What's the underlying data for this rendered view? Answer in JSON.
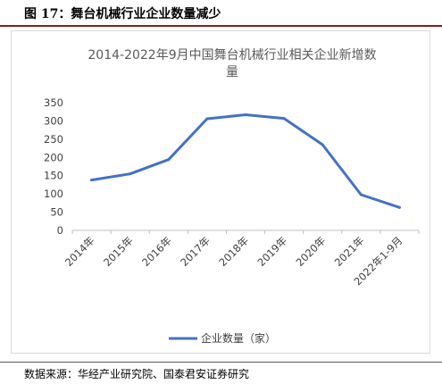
{
  "figure": {
    "title": "图 17：舞台机械行业企业数量减少",
    "source": "数据来源：华经产业研究院、国泰君安证券研究"
  },
  "colors": {
    "line": "#4472c4",
    "rule": "#8b1c1c",
    "axis": "#bfbfbf"
  },
  "chart_data": {
    "type": "line",
    "title_lines": [
      "2014-2022年9月中国舞台机械行业相关企业新增数",
      "量"
    ],
    "categories": [
      "2014年",
      "2015年",
      "2016年",
      "2017年",
      "2018年",
      "2019年",
      "2020年",
      "2021年",
      "2022年1-9月"
    ],
    "series": [
      {
        "name": "企业数量（家）",
        "values": [
          138,
          155,
          194,
          306,
          317,
          307,
          235,
          98,
          63
        ]
      }
    ],
    "ylim": [
      0,
      350
    ],
    "yticks": [
      0,
      50,
      100,
      150,
      200,
      250,
      300,
      350
    ],
    "grid": false,
    "legend": "bottom"
  }
}
